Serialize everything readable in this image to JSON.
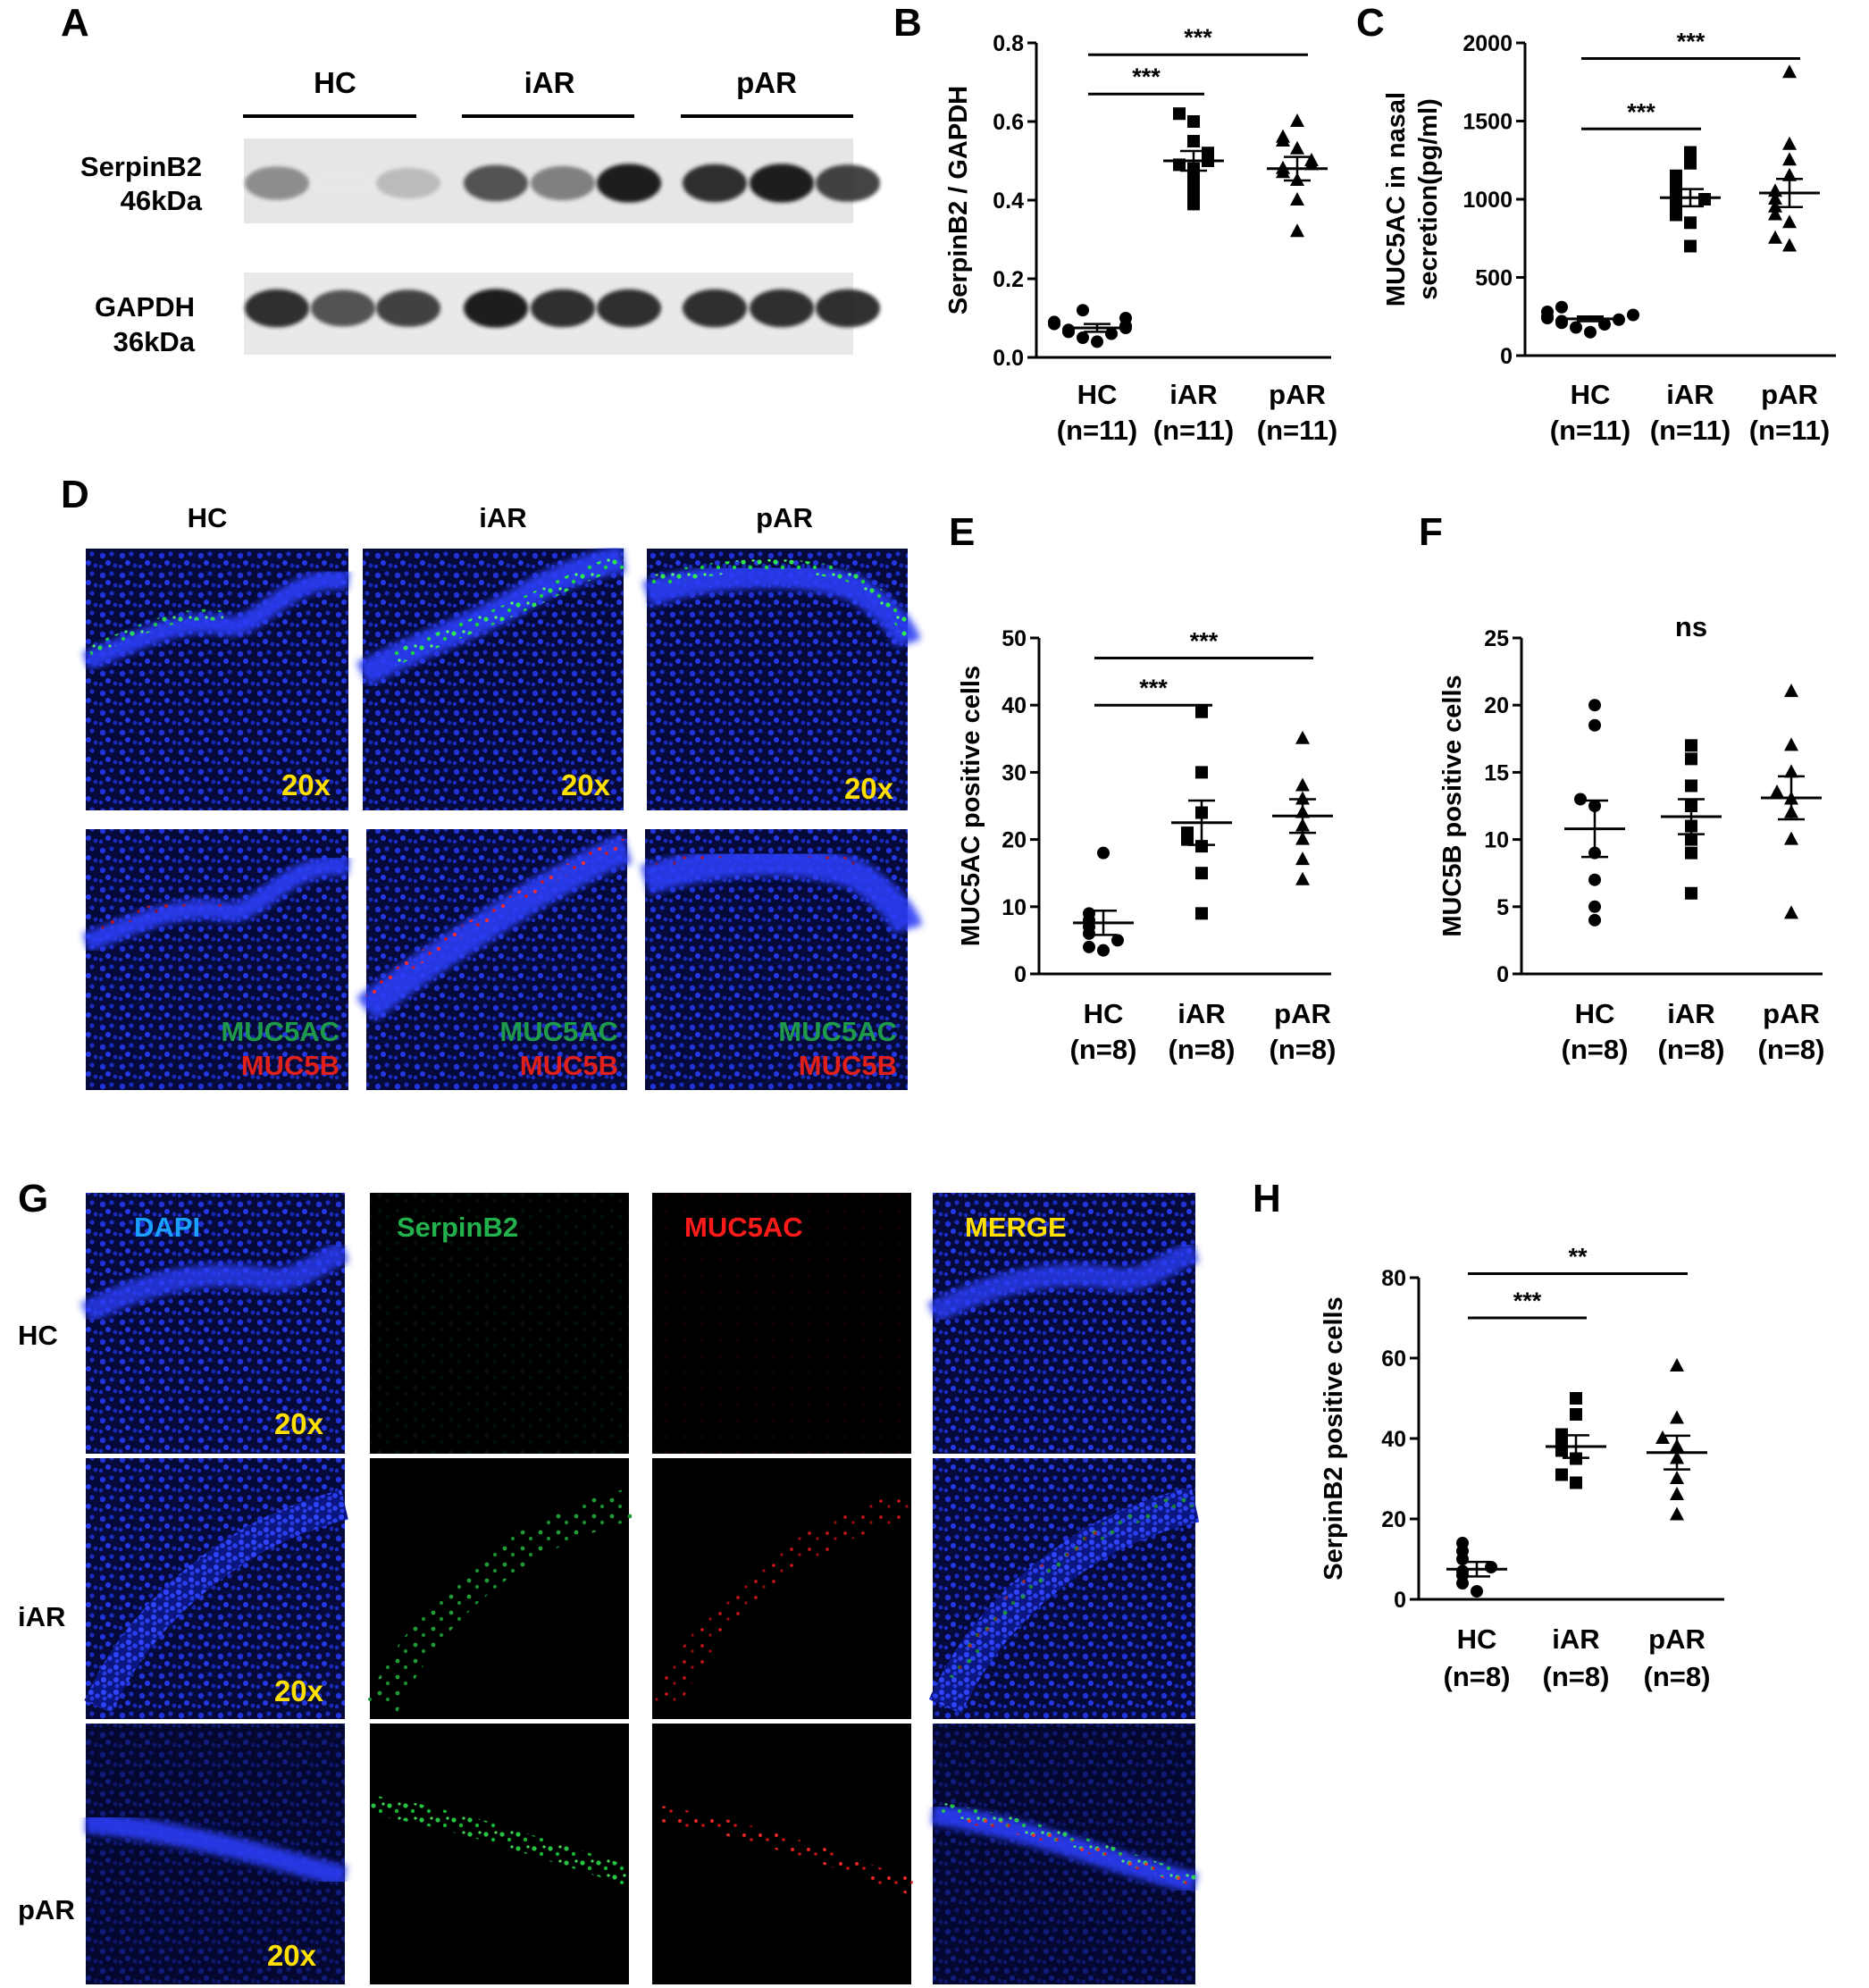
{
  "panels": {
    "A": {
      "letter": "A",
      "groups": [
        "HC",
        "iAR",
        "pAR"
      ],
      "rows": [
        {
          "name": "SerpinB2",
          "size": "46kDa",
          "band_intensity": [
            0.6,
            0.08,
            0.4,
            0.8,
            0.65,
            0.95,
            0.9,
            0.95,
            0.85
          ]
        },
        {
          "name": "GAPDH",
          "size": "36kDa",
          "band_intensity": [
            0.9,
            0.8,
            0.85,
            0.95,
            0.9,
            0.9,
            0.9,
            0.9,
            0.9
          ]
        }
      ]
    },
    "D": {
      "letter": "D",
      "columns": [
        "HC",
        "iAR",
        "pAR"
      ],
      "magnification": "20x",
      "stain_labels": [
        "MUC5AC",
        "MUC5B"
      ]
    },
    "G": {
      "letter": "G",
      "channels": [
        "DAPI",
        "SerpinB2",
        "MUC5AC",
        "MERGE"
      ],
      "rows": [
        "HC",
        "iAR",
        "pAR"
      ],
      "magnification": "20x"
    }
  },
  "colors": {
    "blue": "#1a2fd6",
    "green": "#22b14c",
    "red": "#ff1a1a",
    "yellow": "#ffe000",
    "stain_green": "#1f9a4a",
    "stain_red": "#e0201a",
    "dapi_label": "#1aa0ff"
  },
  "chart_data": [
    {
      "id": "B",
      "letter": "B",
      "type": "scatter",
      "categories": [
        "HC",
        "iAR",
        "pAR"
      ],
      "category_labels": [
        "HC",
        "iAR",
        "pAR"
      ],
      "n_labels": [
        "(n=11)",
        "(n=11)",
        "(n=11)"
      ],
      "ylabel": "SerpinB2 / GAPDH",
      "ylim": [
        0,
        0.8
      ],
      "yticks": [
        "0.0",
        "0.2",
        "0.4",
        "0.6",
        "0.8"
      ],
      "series": [
        {
          "group": "HC",
          "marker": "circle",
          "mean": 0.075,
          "sem": 0.01,
          "values": [
            0.04,
            0.05,
            0.06,
            0.065,
            0.07,
            0.075,
            0.08,
            0.085,
            0.09,
            0.1,
            0.12
          ]
        },
        {
          "group": "iAR",
          "marker": "square",
          "mean": 0.5,
          "sem": 0.025,
          "values": [
            0.39,
            0.42,
            0.45,
            0.48,
            0.49,
            0.5,
            0.51,
            0.52,
            0.55,
            0.6,
            0.62
          ]
        },
        {
          "group": "pAR",
          "marker": "triangle",
          "mean": 0.48,
          "sem": 0.03,
          "values": [
            0.32,
            0.4,
            0.45,
            0.47,
            0.48,
            0.49,
            0.5,
            0.53,
            0.55,
            0.56,
            0.6
          ]
        }
      ],
      "significance": [
        {
          "from": "HC",
          "to": "iAR",
          "label": "***",
          "y": 0.67
        },
        {
          "from": "HC",
          "to": "pAR",
          "label": "***",
          "y": 0.77
        }
      ]
    },
    {
      "id": "C",
      "letter": "C",
      "type": "scatter",
      "categories": [
        "HC",
        "iAR",
        "pAR"
      ],
      "category_labels": [
        "HC",
        "iAR",
        "pAR"
      ],
      "n_labels": [
        "(n=11)",
        "(n=11)",
        "(n=11)"
      ],
      "ylabel_lines": [
        "MUC5AC in nasal",
        "secretion(pg/ml)"
      ],
      "ylim": [
        0,
        2000
      ],
      "yticks": [
        "0",
        "500",
        "1000",
        "1500",
        "2000"
      ],
      "series": [
        {
          "group": "HC",
          "marker": "circle",
          "mean": 235,
          "sem": 15,
          "values": [
            150,
            180,
            200,
            210,
            220,
            230,
            240,
            250,
            260,
            280,
            310
          ]
        },
        {
          "group": "iAR",
          "marker": "square",
          "mean": 1010,
          "sem": 55,
          "values": [
            700,
            850,
            900,
            950,
            980,
            1000,
            1050,
            1100,
            1150,
            1230,
            1300
          ]
        },
        {
          "group": "pAR",
          "marker": "triangle",
          "mean": 1040,
          "sem": 90,
          "values": [
            700,
            750,
            850,
            900,
            950,
            1000,
            1050,
            1150,
            1250,
            1350,
            1810
          ]
        }
      ],
      "significance": [
        {
          "from": "HC",
          "to": "iAR",
          "label": "***",
          "y": 1450
        },
        {
          "from": "HC",
          "to": "pAR",
          "label": "***",
          "y": 1900
        }
      ]
    },
    {
      "id": "E",
      "letter": "E",
      "type": "scatter",
      "categories": [
        "HC",
        "iAR",
        "pAR"
      ],
      "category_labels": [
        "HC",
        "iAR",
        "pAR"
      ],
      "n_labels": [
        "(n=8)",
        "(n=8)",
        "(n=8)"
      ],
      "ylabel": "MUC5AC positive cells",
      "ylim": [
        0,
        50
      ],
      "yticks": [
        "0",
        "10",
        "20",
        "30",
        "40",
        "50"
      ],
      "series": [
        {
          "group": "HC",
          "marker": "circle",
          "mean": 7.6,
          "sem": 1.8,
          "values": [
            3.5,
            4,
            5,
            6,
            7,
            8,
            9,
            18
          ]
        },
        {
          "group": "iAR",
          "marker": "square",
          "mean": 22.5,
          "sem": 3.3,
          "values": [
            9,
            15,
            19,
            20,
            21,
            24,
            30,
            39
          ]
        },
        {
          "group": "pAR",
          "marker": "triangle",
          "mean": 23.5,
          "sem": 2.5,
          "values": [
            14,
            17,
            20,
            22,
            24,
            26,
            28,
            35
          ]
        }
      ],
      "significance": [
        {
          "from": "HC",
          "to": "iAR",
          "label": "***",
          "y": 40
        },
        {
          "from": "HC",
          "to": "pAR",
          "label": "***",
          "y": 47
        }
      ]
    },
    {
      "id": "F",
      "letter": "F",
      "type": "scatter",
      "categories": [
        "HC",
        "iAR",
        "pAR"
      ],
      "category_labels": [
        "HC",
        "iAR",
        "pAR"
      ],
      "n_labels": [
        "(n=8)",
        "(n=8)",
        "(n=8)"
      ],
      "ylabel": "MUC5B positive cells",
      "ylim": [
        0,
        25
      ],
      "yticks": [
        "0",
        "5",
        "10",
        "15",
        "20",
        "25"
      ],
      "series": [
        {
          "group": "HC",
          "marker": "circle",
          "mean": 10.8,
          "sem": 2.1,
          "values": [
            4,
            5,
            7,
            9,
            12.5,
            13,
            18.5,
            20
          ]
        },
        {
          "group": "iAR",
          "marker": "square",
          "mean": 11.7,
          "sem": 1.3,
          "values": [
            6,
            9,
            10,
            11,
            12.5,
            14,
            16,
            17
          ]
        },
        {
          "group": "pAR",
          "marker": "triangle",
          "mean": 13.1,
          "sem": 1.6,
          "values": [
            4.5,
            10,
            12,
            13,
            13.5,
            15,
            17,
            21
          ]
        }
      ],
      "annotation": "ns"
    },
    {
      "id": "H",
      "letter": "H",
      "type": "scatter",
      "categories": [
        "HC",
        "iAR",
        "pAR"
      ],
      "category_labels": [
        "HC",
        "iAR",
        "pAR"
      ],
      "n_labels": [
        "(n=8)",
        "(n=8)",
        "(n=8)"
      ],
      "ylabel": "SerpinB2 positive cells",
      "ylim": [
        0,
        80
      ],
      "yticks": [
        "0",
        "20",
        "40",
        "60",
        "80"
      ],
      "series": [
        {
          "group": "HC",
          "marker": "circle",
          "mean": 7.5,
          "sem": 1.8,
          "values": [
            2,
            4,
            6,
            7,
            8,
            10,
            12,
            14
          ]
        },
        {
          "group": "iAR",
          "marker": "square",
          "mean": 38,
          "sem": 2.8,
          "values": [
            29,
            31,
            35,
            37,
            39,
            41,
            46,
            50
          ]
        },
        {
          "group": "pAR",
          "marker": "triangle",
          "mean": 36.5,
          "sem": 4.2,
          "values": [
            21,
            26,
            30,
            35,
            38,
            40,
            45,
            58
          ]
        }
      ],
      "significance": [
        {
          "from": "HC",
          "to": "iAR",
          "label": "***",
          "y": 70
        },
        {
          "from": "HC",
          "to": "pAR",
          "label": "**",
          "y": 81
        }
      ]
    }
  ]
}
